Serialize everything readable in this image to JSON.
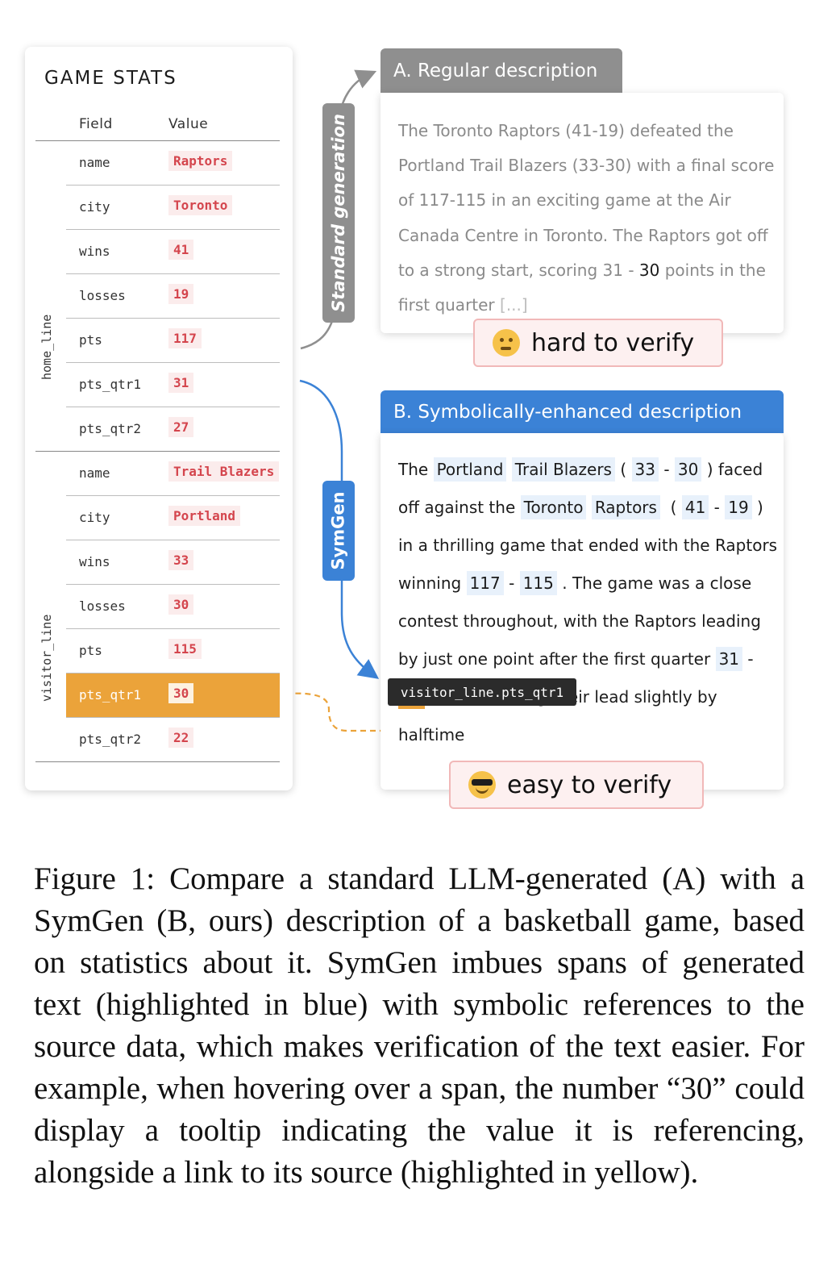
{
  "stats": {
    "title": "GAME STATS",
    "col_field": "Field",
    "col_value": "Value",
    "home_label": "home_line",
    "visitor_label": "visitor_line",
    "home_rows": [
      {
        "field": "name",
        "value": "Raptors"
      },
      {
        "field": "city",
        "value": "Toronto"
      },
      {
        "field": "wins",
        "value": "41"
      },
      {
        "field": "losses",
        "value": "19"
      },
      {
        "field": "pts",
        "value": "117"
      },
      {
        "field": "pts_qtr1",
        "value": "31"
      },
      {
        "field": "pts_qtr2",
        "value": "27"
      }
    ],
    "visitor_rows": [
      {
        "field": "name",
        "value": "Trail Blazers"
      },
      {
        "field": "city",
        "value": "Portland"
      },
      {
        "field": "wins",
        "value": "33"
      },
      {
        "field": "losses",
        "value": "30"
      },
      {
        "field": "pts",
        "value": "115"
      },
      {
        "field": "pts_qtr1",
        "value": "30",
        "highlighted": true
      },
      {
        "field": "pts_qtr2",
        "value": "22"
      }
    ]
  },
  "pills": {
    "standard": "Standard generation",
    "symgen": "SymGen"
  },
  "panel_a": {
    "title": "A. Regular description",
    "text_1": "The Toronto Raptors (41-19) defeated the Portland Trail Blazers (33-30) with a final score of 117-115 in an exciting game at the Air Canada Centre in Toronto. The Raptors got off to a strong start, scoring 31 - ",
    "text_bold": "30",
    "text_2": " points in the first quarter ",
    "text_ellipsis": "[...]",
    "badge": "hard to verify"
  },
  "panel_b": {
    "title": "B. Symbolically-enhanced description",
    "t_the": "The",
    "r_portland": "Portland",
    "r_trail_blazers": "Trail Blazers",
    "t_open1": "(",
    "r_33": "33",
    "t_dash1": "-",
    "r_30a": "30",
    "t_close1": ")",
    "t_faced": "faced off against the",
    "r_toronto": "Toronto",
    "r_raptors": "Raptors",
    "t_open2": "(",
    "r_41": "41",
    "t_dash2": "-",
    "r_19": "19",
    "t_close2": ") in a thrilling game that ended with the Raptors winning",
    "r_117": "117",
    "t_dash3": "-",
    "r_115": "115",
    "t_the2": ". The game was a close contest throughout, with the Raptors leading by just one point after th",
    "t_first_q": "e first quarter",
    "r_31": "31",
    "t_dash4": "-",
    "r_30b": "30",
    "t_extend": "and extending their lead slightly by",
    "t_half": "halftime",
    "tooltip": "visitor_line.pts_qtr1",
    "badge": "easy to verify"
  },
  "caption": "Figure 1: Compare a standard LLM-generated (A) with a SymGen (B, ours) description of a basketball game, based on statistics about it. SymGen imbues spans of generated text (highlighted in blue) with symbolic references to the source data, which makes verification of the text easier. For example, when hovering over a span, the number “30” could display a tooltip indicating the value it is referencing, alongside a link to its source (highlighted in yellow).",
  "colors": {
    "gray": "#8f8f8f",
    "blue": "#3b82d6",
    "orange": "#eba33a",
    "value_red": "#d4454d"
  }
}
